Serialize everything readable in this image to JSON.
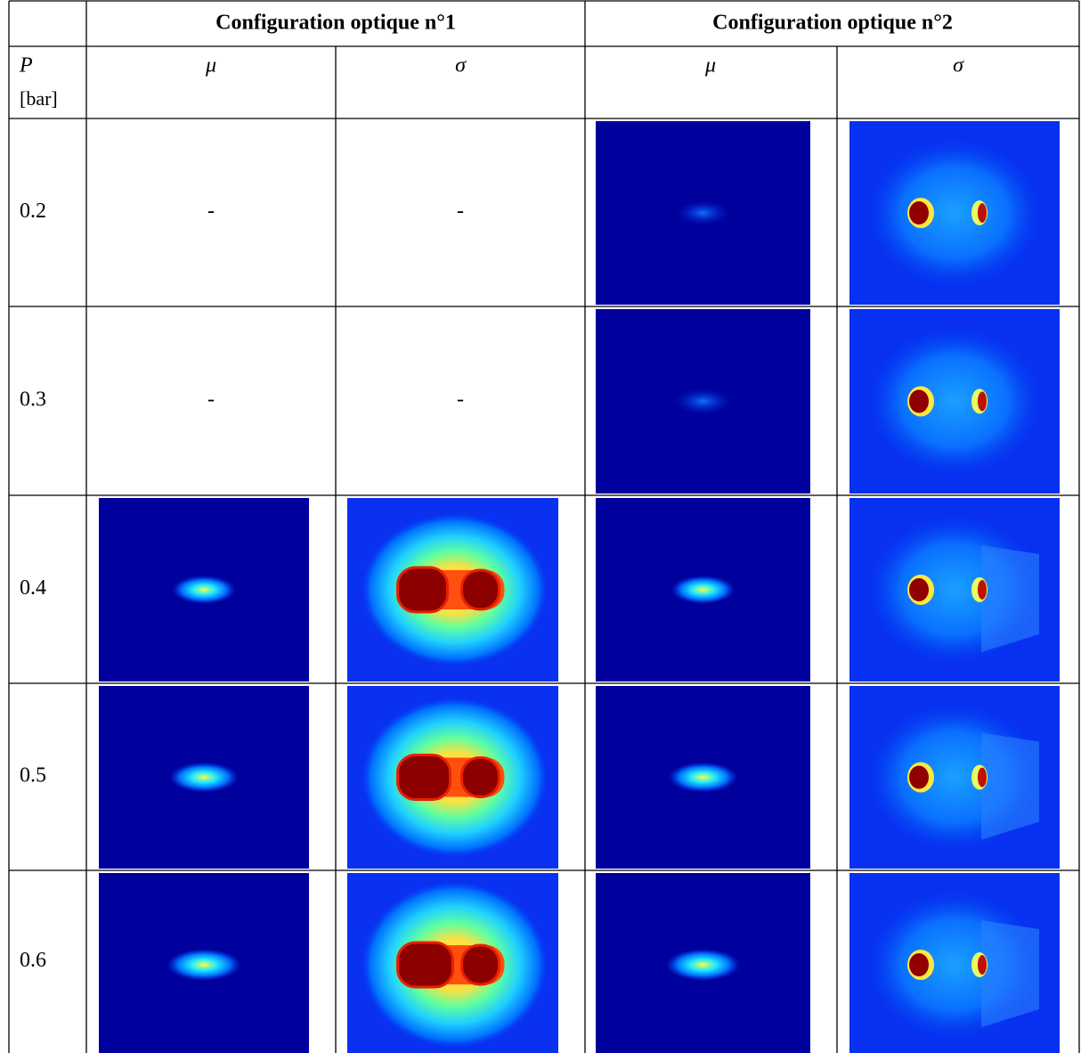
{
  "header": {
    "groups": [
      "Configuration optique n°1",
      "Configuration optique n°2"
    ]
  },
  "subheader": {
    "pressure": "P",
    "unit": "[bar]",
    "columns": [
      "μ",
      "σ",
      "μ",
      "σ"
    ]
  },
  "rows": [
    {
      "pressure": "0.2",
      "cells": [
        "-",
        "-"
      ]
    },
    {
      "pressure": "0.3",
      "cells": [
        "-",
        "-"
      ]
    },
    {
      "pressure": "0.4"
    },
    {
      "pressure": "0.5"
    },
    {
      "pressure": "0.6"
    }
  ]
}
